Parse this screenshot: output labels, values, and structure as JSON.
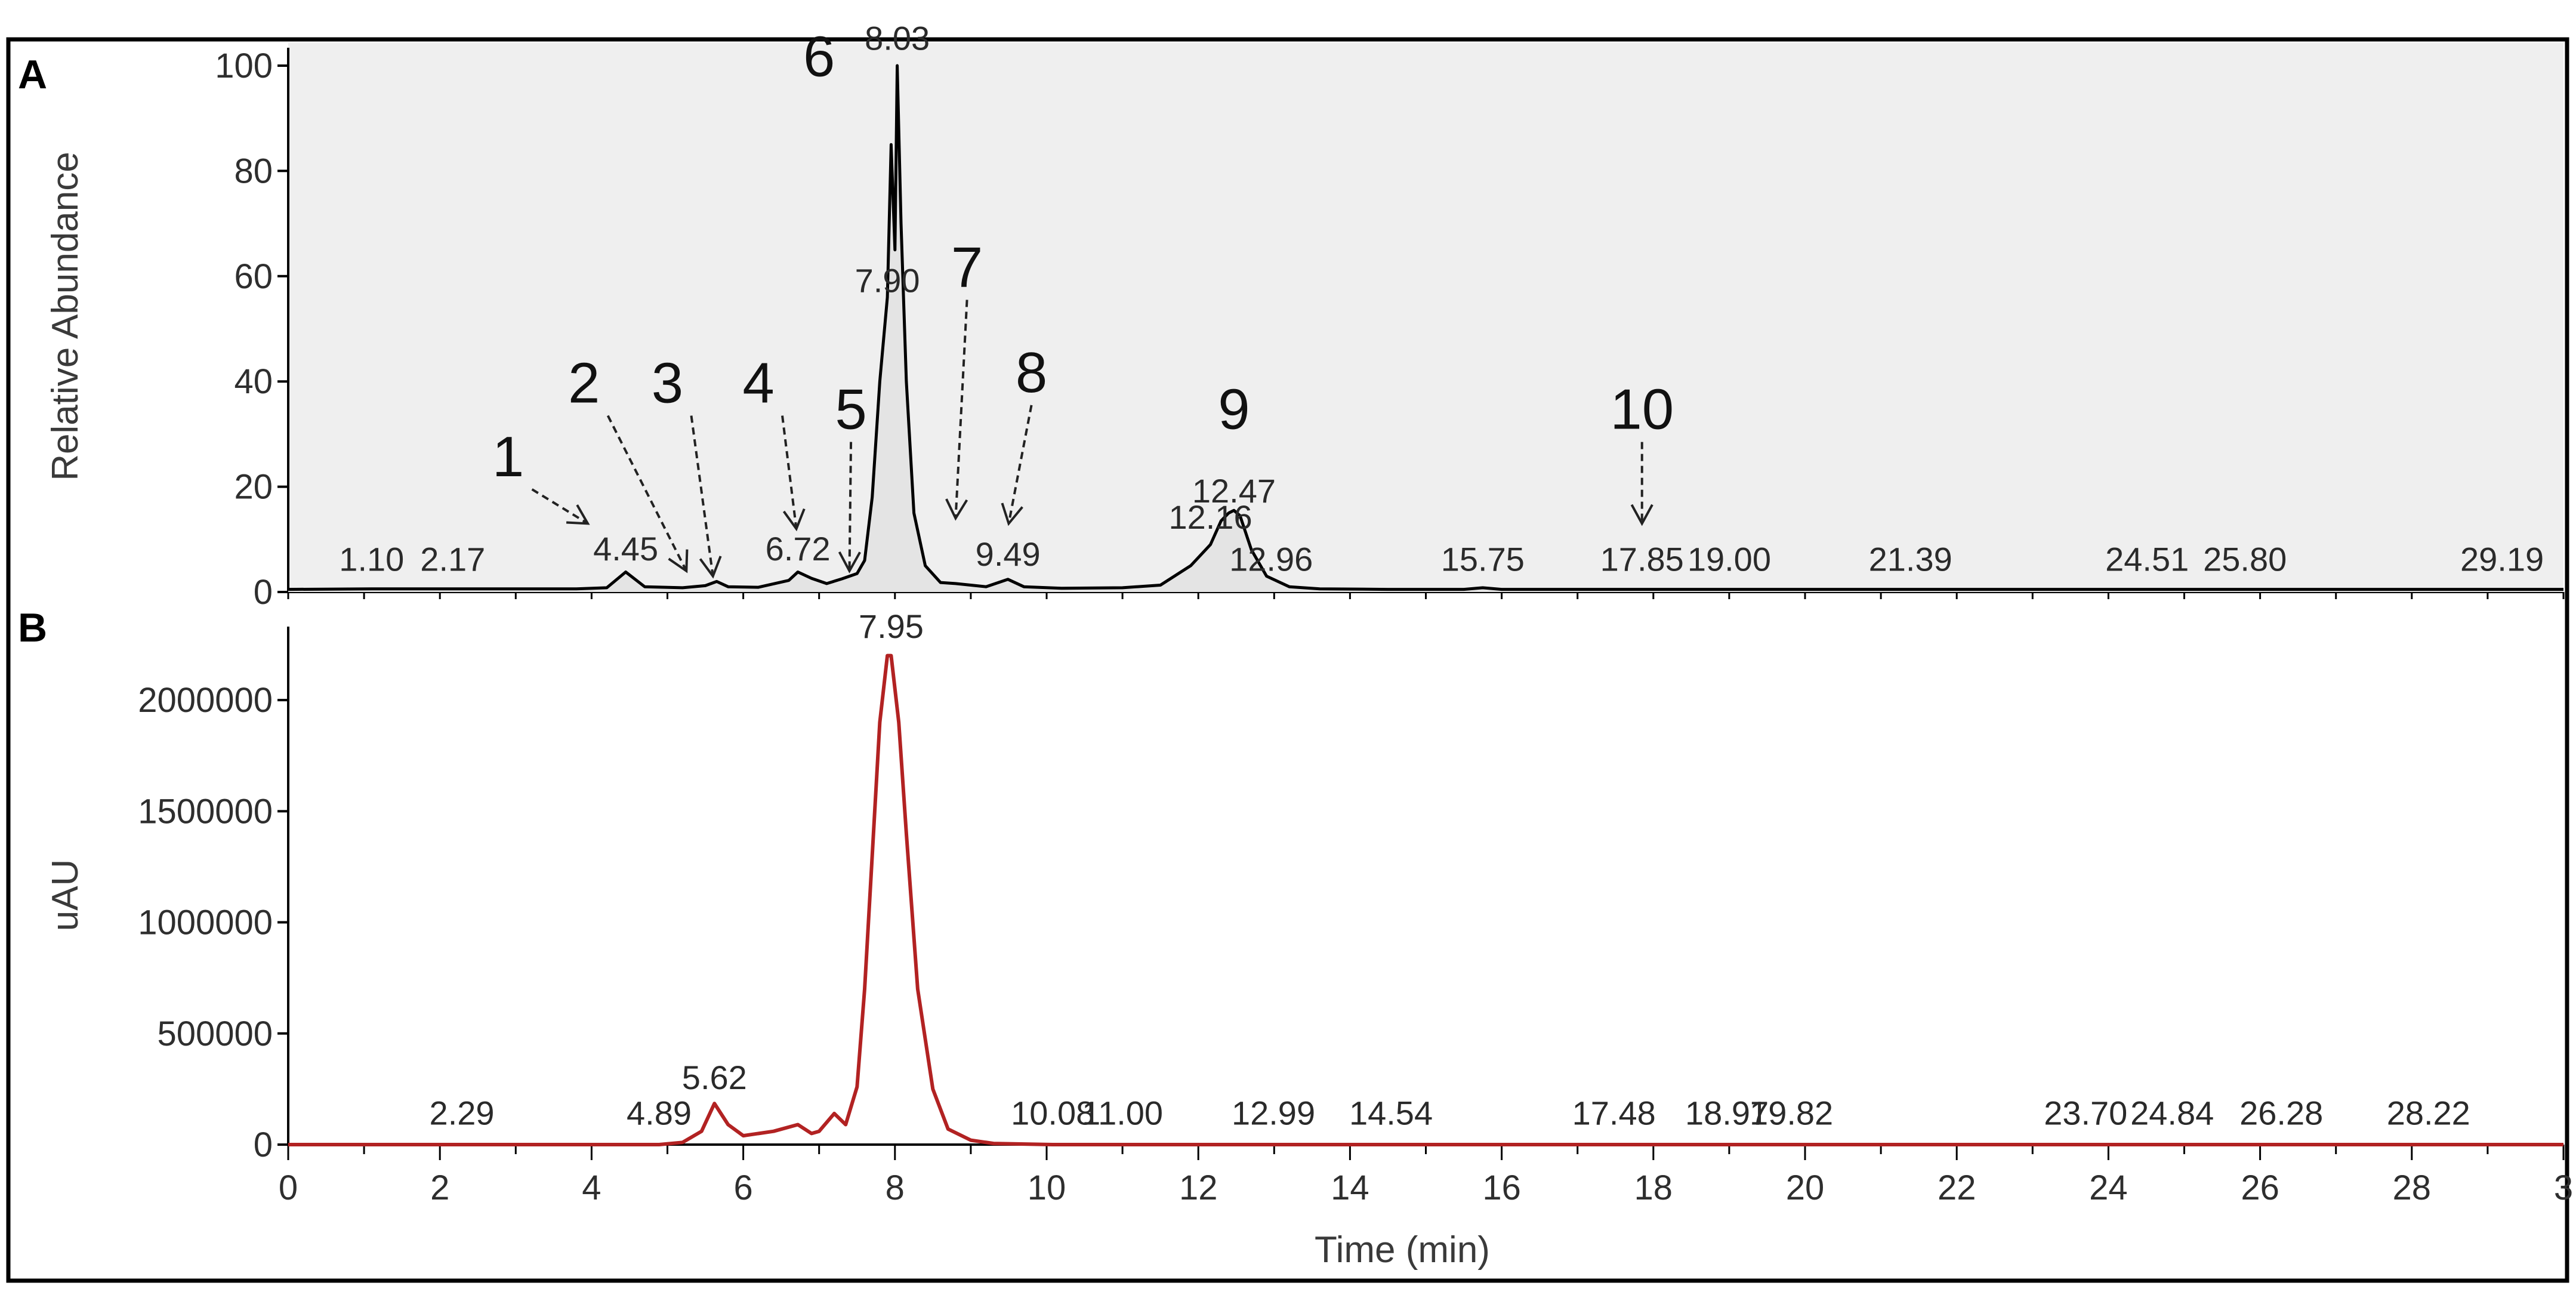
{
  "panel_labels": [
    "A",
    "B"
  ],
  "chart_data": [
    {
      "type": "line",
      "panel": "A",
      "ylabel": "Relative Abundance",
      "xlim": [
        0,
        30
      ],
      "ylim": [
        0,
        100
      ],
      "ytick_labels": [
        "0",
        "20",
        "40",
        "60",
        "80",
        "100"
      ],
      "background": "#efefef",
      "line_color": "#000000",
      "series": [
        {
          "x": [
            0,
            1.1,
            2.17,
            3.8,
            4.2,
            4.45,
            4.7,
            5.2,
            5.5,
            5.65,
            5.8,
            6.2,
            6.6,
            6.72,
            6.9,
            7.1,
            7.3,
            7.5,
            7.6,
            7.7,
            7.8,
            7.9,
            7.95,
            8.0,
            8.03,
            8.08,
            8.15,
            8.25,
            8.4,
            8.6,
            8.8,
            9.0,
            9.2,
            9.49,
            9.7,
            10.2,
            11.0,
            11.5,
            11.9,
            12.16,
            12.3,
            12.4,
            12.47,
            12.55,
            12.7,
            12.9,
            13.2,
            13.6,
            14.5,
            15.5,
            15.75,
            16.0,
            17.85,
            19.0,
            21.39,
            24.51,
            25.8,
            29.19,
            30
          ],
          "y": [
            0.5,
            0.6,
            0.6,
            0.6,
            0.8,
            3.8,
            1.0,
            0.8,
            1.2,
            2.0,
            1.0,
            0.9,
            2.2,
            3.8,
            2.6,
            1.6,
            2.5,
            3.5,
            6.0,
            18.0,
            40.0,
            56.0,
            85.0,
            65.0,
            100.0,
            70.0,
            40.0,
            15.0,
            5.0,
            1.8,
            1.6,
            1.3,
            1.0,
            2.4,
            1.0,
            0.7,
            0.8,
            1.3,
            5.0,
            9.0,
            13.5,
            15.0,
            15.5,
            14.5,
            8.0,
            3.0,
            1.0,
            0.6,
            0.5,
            0.5,
            0.8,
            0.5,
            0.5,
            0.5,
            0.5,
            0.5,
            0.5,
            0.5,
            0.5
          ]
        }
      ],
      "peak_labels": [
        {
          "x": 1.1,
          "y": 4,
          "text": "1.10"
        },
        {
          "x": 2.17,
          "y": 4,
          "text": "2.17"
        },
        {
          "x": 4.45,
          "y": 6,
          "text": "4.45"
        },
        {
          "x": 6.72,
          "y": 6,
          "text": "6.72"
        },
        {
          "x": 7.9,
          "y": 57,
          "text": "7.90"
        },
        {
          "x": 8.03,
          "y": 103,
          "text": "8.03"
        },
        {
          "x": 9.49,
          "y": 5,
          "text": "9.49"
        },
        {
          "x": 12.16,
          "y": 12,
          "text": "12.16"
        },
        {
          "x": 12.47,
          "y": 17,
          "text": "12.47"
        },
        {
          "x": 12.96,
          "y": 4,
          "text": "12.96"
        },
        {
          "x": 15.75,
          "y": 4,
          "text": "15.75"
        },
        {
          "x": 17.85,
          "y": 4,
          "text": "17.85"
        },
        {
          "x": 19.0,
          "y": 4,
          "text": "19.00"
        },
        {
          "x": 21.39,
          "y": 4,
          "text": "21.39"
        },
        {
          "x": 24.51,
          "y": 4,
          "text": "24.51"
        },
        {
          "x": 25.8,
          "y": 4,
          "text": "25.80"
        },
        {
          "x": 29.19,
          "y": 4,
          "text": "29.19"
        }
      ],
      "peak_numbers": [
        {
          "text": "1",
          "label_x": 2.9,
          "label_y": 22,
          "target_x": 3.95,
          "target_y": 13
        },
        {
          "text": "2",
          "label_x": 3.9,
          "label_y": 36,
          "target_x": 5.25,
          "target_y": 4
        },
        {
          "text": "3",
          "label_x": 5.0,
          "label_y": 36,
          "target_x": 5.6,
          "target_y": 3
        },
        {
          "text": "4",
          "label_x": 6.2,
          "label_y": 36,
          "target_x": 6.7,
          "target_y": 12
        },
        {
          "text": "5",
          "label_x": 7.42,
          "label_y": 31,
          "target_x": 7.4,
          "target_y": 4
        },
        {
          "text": "6",
          "label_x": 7.0,
          "label_y": 98,
          "target_x": null,
          "target_y": null
        },
        {
          "text": "7",
          "label_x": 8.95,
          "label_y": 58,
          "target_x": 8.8,
          "target_y": 14
        },
        {
          "text": "8",
          "label_x": 9.8,
          "label_y": 38,
          "target_x": 9.5,
          "target_y": 13
        },
        {
          "text": "9",
          "label_x": 12.47,
          "label_y": 31,
          "target_x": null,
          "target_y": null
        },
        {
          "text": "10",
          "label_x": 17.85,
          "label_y": 31,
          "target_x": 17.85,
          "target_y": 13
        }
      ]
    },
    {
      "type": "line",
      "panel": "B",
      "ylabel": "uAU",
      "xlabel": "Time (min)",
      "xlim": [
        0,
        30
      ],
      "ylim": [
        0,
        2250000
      ],
      "ytick_labels": [
        "0",
        "500000",
        "1000000",
        "1500000",
        "2000000"
      ],
      "xtick_labels": [
        "0",
        "2",
        "4",
        "6",
        "8",
        "10",
        "12",
        "14",
        "16",
        "18",
        "20",
        "22",
        "24",
        "26",
        "28",
        "3"
      ],
      "background": "#ffffff",
      "line_color": "#b22222",
      "series": [
        {
          "x": [
            0,
            2.29,
            4.89,
            5.2,
            5.45,
            5.62,
            5.8,
            6.0,
            6.4,
            6.72,
            6.9,
            7.0,
            7.2,
            7.35,
            7.5,
            7.6,
            7.7,
            7.8,
            7.9,
            7.95,
            8.05,
            8.15,
            8.3,
            8.5,
            8.7,
            9.0,
            9.3,
            10.08,
            11.0,
            12.99,
            14.54,
            17.48,
            18.97,
            19.82,
            23.7,
            24.84,
            26.28,
            28.22,
            30
          ],
          "y": [
            0,
            0,
            0,
            10000,
            60000,
            185000,
            90000,
            40000,
            60000,
            90000,
            50000,
            60000,
            140000,
            90000,
            260000,
            700000,
            1300000,
            1900000,
            2200000,
            2200000,
            1900000,
            1400000,
            700000,
            250000,
            70000,
            20000,
            5000,
            0,
            0,
            0,
            0,
            0,
            0,
            0,
            0,
            0,
            0,
            0,
            0
          ]
        }
      ],
      "peak_labels": [
        {
          "x": 2.29,
          "y": 90000,
          "text": "2.29"
        },
        {
          "x": 4.89,
          "y": 90000,
          "text": "4.89"
        },
        {
          "x": 5.62,
          "y": 250000,
          "text": "5.62"
        },
        {
          "x": 7.95,
          "y": 2280000,
          "text": "7.95"
        },
        {
          "x": 10.08,
          "y": 90000,
          "text": "10.08"
        },
        {
          "x": 11.0,
          "y": 90000,
          "text": "11.00"
        },
        {
          "x": 12.99,
          "y": 90000,
          "text": "12.99"
        },
        {
          "x": 14.54,
          "y": 90000,
          "text": "14.54"
        },
        {
          "x": 17.48,
          "y": 90000,
          "text": "17.48"
        },
        {
          "x": 18.97,
          "y": 90000,
          "text": "18.97"
        },
        {
          "x": 19.82,
          "y": 90000,
          "text": "19.82"
        },
        {
          "x": 23.7,
          "y": 90000,
          "text": "23.70"
        },
        {
          "x": 24.84,
          "y": 90000,
          "text": "24.84"
        },
        {
          "x": 26.28,
          "y": 90000,
          "text": "26.28"
        },
        {
          "x": 28.22,
          "y": 90000,
          "text": "28.22"
        }
      ]
    }
  ]
}
